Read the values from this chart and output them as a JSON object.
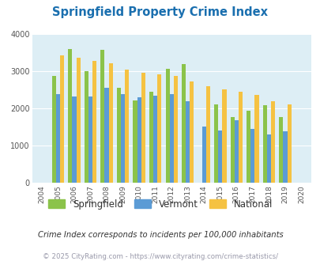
{
  "title": "Springfield Property Crime Index",
  "years": [
    2004,
    2005,
    2006,
    2007,
    2008,
    2009,
    2010,
    2011,
    2012,
    2013,
    2014,
    2015,
    2016,
    2017,
    2018,
    2019,
    2020
  ],
  "springfield": [
    0,
    2880,
    3600,
    3000,
    3570,
    2560,
    2220,
    2450,
    3060,
    3200,
    0,
    2100,
    1760,
    1940,
    2080,
    1760,
    0
  ],
  "vermont": [
    0,
    2380,
    2310,
    2310,
    2560,
    2390,
    2290,
    2330,
    2390,
    2200,
    1520,
    1400,
    1680,
    1440,
    1290,
    1390,
    0
  ],
  "national": [
    0,
    3420,
    3350,
    3280,
    3210,
    3040,
    2950,
    2920,
    2870,
    2720,
    2600,
    2500,
    2450,
    2360,
    2200,
    2100,
    0
  ],
  "springfield_color": "#8bc34a",
  "vermont_color": "#5b9bd5",
  "national_color": "#f5c242",
  "bg_color": "#ddeef5",
  "ylim": [
    0,
    4000
  ],
  "yticks": [
    0,
    1000,
    2000,
    3000,
    4000
  ],
  "footnote1": "Crime Index corresponds to incidents per 100,000 inhabitants",
  "footnote2": "© 2025 CityRating.com - https://www.cityrating.com/crime-statistics/",
  "legend_labels": [
    "Springfield",
    "Vermont",
    "National"
  ],
  "bar_width": 0.25
}
